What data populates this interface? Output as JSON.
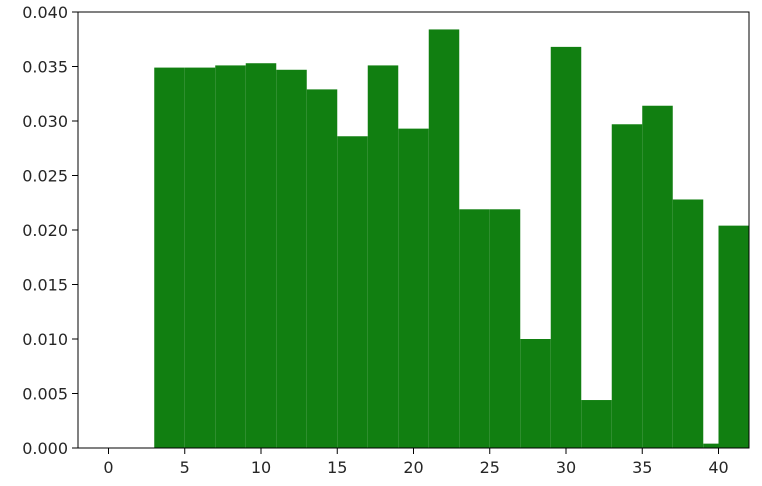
{
  "chart_data": {
    "type": "bar",
    "title": "",
    "xlabel": "",
    "ylabel": "",
    "xlim": [
      -2.0,
      42.0
    ],
    "ylim": [
      0.0,
      0.04
    ],
    "grid": false,
    "bar_color": "#117f11",
    "bin_width": 2,
    "bins": [
      {
        "x": 3,
        "value": 0.0349
      },
      {
        "x": 5,
        "value": 0.0349
      },
      {
        "x": 7,
        "value": 0.0351
      },
      {
        "x": 9,
        "value": 0.0353
      },
      {
        "x": 11,
        "value": 0.0347
      },
      {
        "x": 13,
        "value": 0.0329
      },
      {
        "x": 15,
        "value": 0.0286
      },
      {
        "x": 17,
        "value": 0.0351
      },
      {
        "x": 19,
        "value": 0.0293
      },
      {
        "x": 21,
        "value": 0.0384
      },
      {
        "x": 23,
        "value": 0.0219
      },
      {
        "x": 25,
        "value": 0.0219
      },
      {
        "x": 27,
        "value": 0.01
      },
      {
        "x": 29,
        "value": 0.0368
      },
      {
        "x": 31,
        "value": 0.0044
      },
      {
        "x": 33,
        "value": 0.0297
      },
      {
        "x": 35,
        "value": 0.0314
      },
      {
        "x": 37,
        "value": 0.0228
      },
      {
        "x": 39,
        "value": 0.0004
      },
      {
        "x": 40,
        "value": 0.0204
      }
    ],
    "x_ticks": [
      {
        "value": 0,
        "label": "0"
      },
      {
        "value": 5,
        "label": "5"
      },
      {
        "value": 10,
        "label": "10"
      },
      {
        "value": 15,
        "label": "15"
      },
      {
        "value": 20,
        "label": "20"
      },
      {
        "value": 25,
        "label": "25"
      },
      {
        "value": 30,
        "label": "30"
      },
      {
        "value": 35,
        "label": "35"
      },
      {
        "value": 40,
        "label": "40"
      }
    ],
    "y_ticks": [
      {
        "value": 0.0,
        "label": "0.000"
      },
      {
        "value": 0.005,
        "label": "0.005"
      },
      {
        "value": 0.01,
        "label": "0.010"
      },
      {
        "value": 0.015,
        "label": "0.015"
      },
      {
        "value": 0.02,
        "label": "0.020"
      },
      {
        "value": 0.025,
        "label": "0.025"
      },
      {
        "value": 0.03,
        "label": "0.030"
      },
      {
        "value": 0.035,
        "label": "0.035"
      },
      {
        "value": 0.04,
        "label": "0.040"
      }
    ]
  }
}
